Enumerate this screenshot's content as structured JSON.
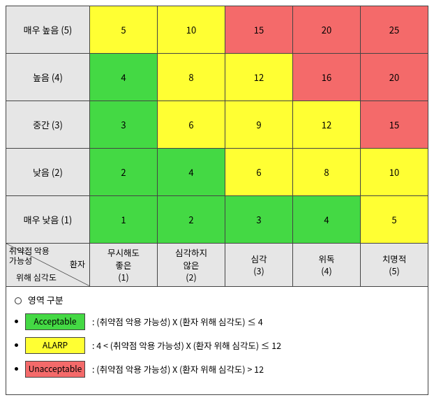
{
  "colors": {
    "header": "#e6e6e6",
    "acceptable": "#44d944",
    "alarp": "#ffff33",
    "unacceptable": "#f46a6a",
    "border": "#444444",
    "text": "#000000",
    "bg": "#ffffff"
  },
  "row_headers": [
    "매우 높음 (5)",
    "높음 (4)",
    "중간 (3)",
    "낮음 (2)",
    "매우 낮음 (1)"
  ],
  "col_headers": [
    {
      "t": "무시해도",
      "b": "좋은",
      "n": "(1)"
    },
    {
      "t": "심각하지",
      "b": "않은",
      "n": "(2)"
    },
    {
      "t": "심각",
      "b": "",
      "n": "(3)"
    },
    {
      "t": "위독",
      "b": "",
      "n": "(4)"
    },
    {
      "t": "치명적",
      "b": "",
      "n": "(5)"
    }
  ],
  "diag": {
    "tl": "취약점 악용",
    "tl2": "가능성",
    "mr": "환자",
    "bl": "위해 심각도"
  },
  "cells": [
    [
      {
        "v": 5,
        "c": "y"
      },
      {
        "v": 10,
        "c": "y"
      },
      {
        "v": 15,
        "c": "r"
      },
      {
        "v": 20,
        "c": "r"
      },
      {
        "v": 25,
        "c": "r"
      }
    ],
    [
      {
        "v": 4,
        "c": "g"
      },
      {
        "v": 8,
        "c": "y"
      },
      {
        "v": 12,
        "c": "y"
      },
      {
        "v": 16,
        "c": "r"
      },
      {
        "v": 20,
        "c": "r"
      }
    ],
    [
      {
        "v": 3,
        "c": "g"
      },
      {
        "v": 6,
        "c": "y"
      },
      {
        "v": 9,
        "c": "y"
      },
      {
        "v": 12,
        "c": "y"
      },
      {
        "v": 15,
        "c": "r"
      }
    ],
    [
      {
        "v": 2,
        "c": "g"
      },
      {
        "v": 4,
        "c": "g"
      },
      {
        "v": 6,
        "c": "y"
      },
      {
        "v": 8,
        "c": "y"
      },
      {
        "v": 10,
        "c": "y"
      }
    ],
    [
      {
        "v": 1,
        "c": "g"
      },
      {
        "v": 2,
        "c": "g"
      },
      {
        "v": 3,
        "c": "g"
      },
      {
        "v": 4,
        "c": "g"
      },
      {
        "v": 5,
        "c": "y"
      }
    ]
  ],
  "legend": {
    "title": "영역 구분",
    "items": [
      {
        "label": "Acceptable",
        "color": "acceptable",
        "desc": ":   (취약점 악용 가능성) X (환자 위해 심각도)  ≤  4"
      },
      {
        "label": "ALARP",
        "color": "alarp",
        "desc": ":   4 < (취약점 악용 가능성) X (환자 위해 심각도) ≤ 12"
      },
      {
        "label": "Unacceptable",
        "color": "unacceptable",
        "desc": ":   (취약점 악용 가능성) X (환자 위해 심각도) > 12"
      }
    ]
  }
}
